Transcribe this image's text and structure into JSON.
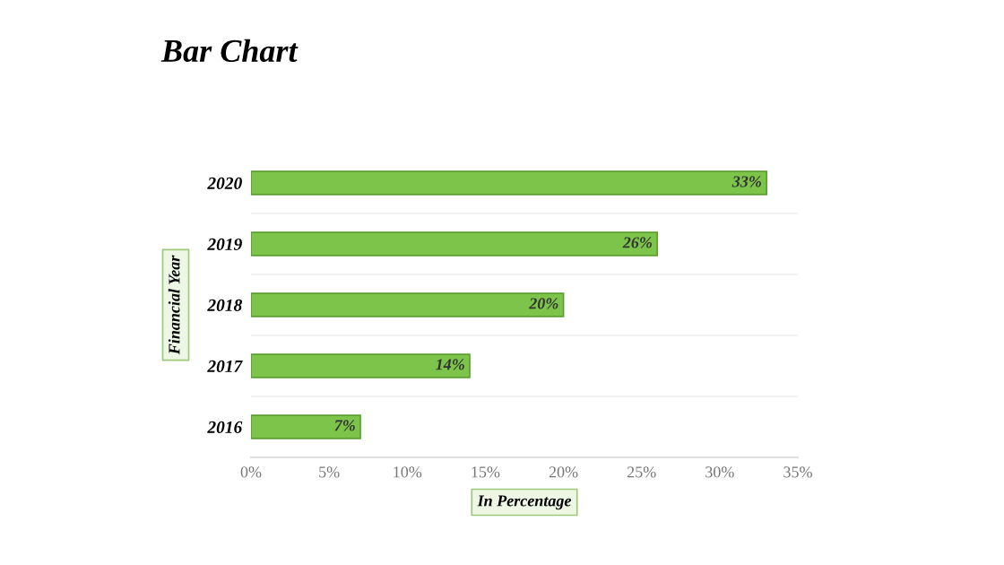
{
  "chart_data": {
    "type": "bar",
    "orientation": "horizontal",
    "title": "Bar Chart",
    "xlabel": "In Percentage",
    "ylabel": "Financial Year",
    "categories": [
      "2020",
      "2019",
      "2018",
      "2017",
      "2016"
    ],
    "values": [
      33,
      26,
      20,
      14,
      7
    ],
    "value_labels": [
      "33%",
      "26%",
      "20%",
      "14%",
      "7%"
    ],
    "color": "#7cc54a",
    "xlim": [
      0,
      35
    ],
    "xticks": [
      {
        "value": 0,
        "label": "0%"
      },
      {
        "value": 5,
        "label": "5%"
      },
      {
        "value": 10,
        "label": "10%"
      },
      {
        "value": 15,
        "label": "15%"
      },
      {
        "value": 20,
        "label": "20%"
      },
      {
        "value": 25,
        "label": "25%"
      },
      {
        "value": 30,
        "label": "30%"
      },
      {
        "value": 35,
        "label": "35%"
      }
    ]
  }
}
